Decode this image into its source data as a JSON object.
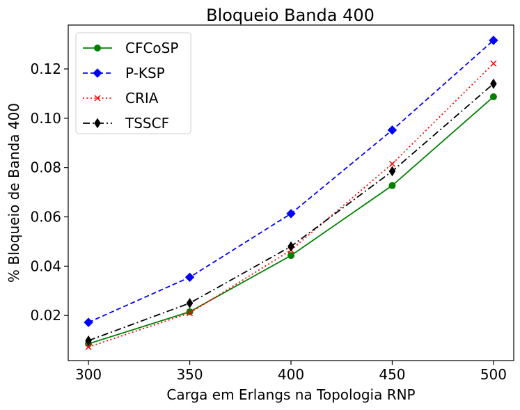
{
  "chart_data": {
    "type": "line",
    "title": "Bloqueio Banda 400",
    "xlabel": "Carga em Erlangs na Topologia RNP",
    "ylabel": "% Bloqueio de Banda 400",
    "x": [
      300,
      350,
      400,
      450,
      500
    ],
    "xticks": [
      "300",
      "350",
      "400",
      "450",
      "500"
    ],
    "yticks": [
      "0.02",
      "0.04",
      "0.06",
      "0.08",
      "0.10",
      "0.12"
    ],
    "xlim": [
      290,
      510
    ],
    "ylim": [
      0.0017,
      0.1378
    ],
    "grid": false,
    "legend_position": "top-left",
    "series": [
      {
        "name": "CFCoSP",
        "values": [
          0.0085,
          0.0215,
          0.0443,
          0.0727,
          0.1087
        ],
        "color": "#008000",
        "line_style": "solid",
        "marker": "circle"
      },
      {
        "name": "P-KSP",
        "values": [
          0.0172,
          0.0355,
          0.0613,
          0.0952,
          0.1316
        ],
        "color": "#0000ff",
        "line_style": "dashed",
        "marker": "diamond"
      },
      {
        "name": "CRIA",
        "values": [
          0.0072,
          0.021,
          0.0465,
          0.0815,
          0.1222
        ],
        "color": "#ff0000",
        "line_style": "dotted",
        "marker": "x"
      },
      {
        "name": "TSSCF",
        "values": [
          0.0098,
          0.025,
          0.048,
          0.0785,
          0.114
        ],
        "color": "#000000",
        "line_style": "dashdot",
        "marker": "thin-diamond"
      }
    ]
  }
}
